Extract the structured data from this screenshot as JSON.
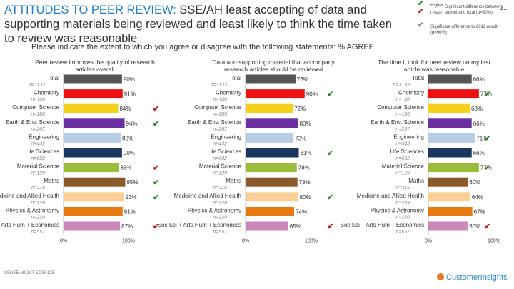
{
  "header": {
    "title_highlight": "ATTITUDES TO PEER REVIEW:",
    "title_rest": " SSE/AH least accepting of data and supporting materials being reviewed and least likely to think the time taken to review was reasonable",
    "subtitle": "Please indicate the extent to which you agree or disagree with the following statements: % AGREE",
    "page_number": "21"
  },
  "legend": {
    "higher_label": "Higher",
    "lower_label": "Lower",
    "significant_total_desc": "Significant difference between subset and total (p=90%)",
    "significant_2012_desc": "Significant difference to 2012 result (p=90%)",
    "colors": {
      "higher": "#2e8b2e",
      "lower": "#c0161c",
      "vs2012": "#888888"
    }
  },
  "footer": {
    "left_text": "SENSE ABOUT SCIENCE",
    "brand": "CustomerInsights"
  },
  "chart_data": [
    {
      "type": "bar",
      "title": "Peer review improves the quality of research articles overall",
      "categories": [
        {
          "name": "Total",
          "n": "n=3132"
        },
        {
          "name": "Chemistry",
          "n": "n=146"
        },
        {
          "name": "Computer Science",
          "n": "n=186"
        },
        {
          "name": "Earth & Env. Science",
          "n": "n=267"
        },
        {
          "name": "Engineering",
          "n": "n=442"
        },
        {
          "name": "Life Sciences",
          "n": "n=602"
        },
        {
          "name": "Material Science",
          "n": "n=129"
        },
        {
          "name": "Maths",
          "n": "n=116"
        },
        {
          "name": "Medicine and Allied Health",
          "n": "n=449"
        },
        {
          "name": "Physics & Astronomy",
          "n": "n=220"
        },
        {
          "name": "Soc Sci + Arts Hum + Economics",
          "n": "n=557"
        }
      ],
      "values": [
        90,
        91,
        84,
        94,
        88,
        90,
        85,
        95,
        93,
        91,
        87
      ],
      "labels": [
        "90%",
        "91%",
        "84%",
        "94%",
        "88%",
        "90%",
        "85%",
        "95%",
        "93%",
        "91%",
        "87%"
      ],
      "ticks": [
        null,
        null,
        "lower",
        "higher",
        null,
        null,
        "lower",
        "higher",
        "higher",
        null,
        "lower"
      ],
      "xlim": [
        0,
        100
      ],
      "xtick_labels": [
        "0%",
        "100%"
      ]
    },
    {
      "type": "bar",
      "title": "Data and supporting material that accompany research articles should be reviewed",
      "categories": [
        {
          "name": "Total",
          "n": "n=3133"
        },
        {
          "name": "Chemistry",
          "n": "n=146"
        },
        {
          "name": "Computer Science",
          "n": "n=186"
        },
        {
          "name": "Earth & Env. Science",
          "n": "n=267"
        },
        {
          "name": "Engineering",
          "n": "n=442"
        },
        {
          "name": "Life Sciences",
          "n": "n=602"
        },
        {
          "name": "Material Science",
          "n": "n=129"
        },
        {
          "name": "Maths",
          "n": "n=116"
        },
        {
          "name": "Medicine and Allied Health",
          "n": "n=449"
        },
        {
          "name": "Physics & Astronomy",
          "n": "n=220"
        },
        {
          "name": "Soc Sci + Arts Hum + Economics",
          "n": "n=557"
        }
      ],
      "values": [
        76,
        90,
        72,
        80,
        73,
        81,
        78,
        79,
        80,
        74,
        65
      ],
      "labels": [
        "76%",
        "90%",
        "72%",
        "80%",
        "73%",
        "81%",
        "78%",
        "79%",
        "80%",
        "74%",
        "65%"
      ],
      "ticks": [
        null,
        "higher",
        null,
        null,
        null,
        "higher",
        null,
        null,
        "higher",
        null,
        "lower"
      ],
      "xlim": [
        0,
        100
      ],
      "xtick_labels": [
        "0%",
        "100%"
      ]
    },
    {
      "type": "bar",
      "title": "The time it took for peer review on my last article was reasonable",
      "categories": [
        {
          "name": "Total",
          "n": "n=3133"
        },
        {
          "name": "Chemistry",
          "n": "n=146"
        },
        {
          "name": "Computer Science",
          "n": "n=186"
        },
        {
          "name": "Earth & Env. Science",
          "n": "n=267"
        },
        {
          "name": "Engineering",
          "n": "n=443"
        },
        {
          "name": "Life Sciences",
          "n": "n=602"
        },
        {
          "name": "Material Science",
          "n": "n=129"
        },
        {
          "name": "Maths",
          "n": "n=116"
        },
        {
          "name": "Medicine and Allied Health",
          "n": "n=449"
        },
        {
          "name": "Physics & Astronomy",
          "n": "n=220"
        },
        {
          "name": "Soc Sci + Arts Hum + Economics",
          "n": "n=557"
        }
      ],
      "values": [
        66,
        77,
        63,
        66,
        71,
        66,
        77,
        60,
        64,
        67,
        60
      ],
      "labels": [
        "66%",
        "77%",
        "63%",
        "66%",
        "71%",
        "66%",
        "77%",
        "60%",
        "64%",
        "67%",
        "60%"
      ],
      "ticks": [
        null,
        "higher",
        null,
        null,
        "higher",
        null,
        "higher",
        null,
        null,
        null,
        "lower"
      ],
      "xlim": [
        0,
        100
      ],
      "xtick_labels": [
        "0%",
        "100%"
      ]
    }
  ]
}
